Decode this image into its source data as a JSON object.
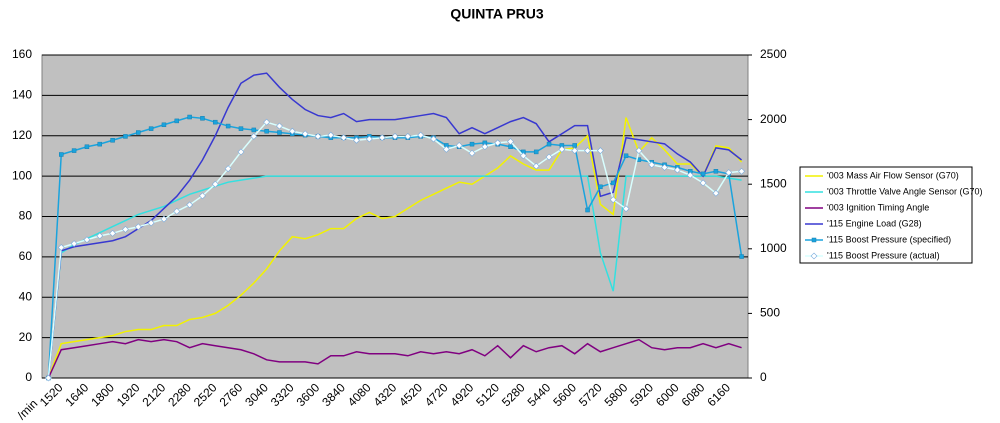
{
  "chart_data": {
    "type": "line",
    "title": "QUINTA PRU3",
    "x_label": "/min",
    "categories": [
      null,
      "1520",
      null,
      "1640",
      null,
      "1800",
      null,
      "1920",
      null,
      "2120",
      null,
      "2280",
      null,
      "2520",
      null,
      "2760",
      null,
      "3040",
      null,
      "3320",
      null,
      "3600",
      null,
      "3840",
      null,
      "4080",
      null,
      "4320",
      null,
      "4520",
      null,
      "4720",
      null,
      "4920",
      null,
      "5120",
      null,
      "5280",
      null,
      "5440",
      null,
      "5600",
      null,
      "5720",
      null,
      "5800",
      null,
      "5920",
      null,
      "6000",
      null,
      "6080",
      null,
      "6160",
      null
    ],
    "ylim": [
      0,
      160
    ],
    "yticks": [
      0,
      20,
      40,
      60,
      80,
      100,
      120,
      140,
      160
    ],
    "y2lim": [
      0,
      2500
    ],
    "y2ticks": [
      0,
      500,
      1000,
      1500,
      2000,
      2500
    ],
    "grid": true,
    "legend": "right",
    "series": [
      {
        "name": "'003 Mass Air Flow Sensor (G70)",
        "color": "#f2f200",
        "values": [
          0,
          17,
          18,
          19,
          20,
          21,
          23,
          24,
          24,
          26,
          26,
          29,
          30,
          32,
          36,
          41,
          47,
          54,
          63,
          70,
          69,
          71,
          74,
          74,
          79,
          82,
          79,
          80,
          84,
          88,
          91,
          94,
          97,
          96,
          100,
          104,
          110,
          106,
          103,
          103,
          113,
          114,
          120,
          86,
          81,
          129,
          112,
          119,
          113,
          106,
          106,
          100,
          115,
          114,
          107
        ]
      },
      {
        "name": "'003 Throttle Valve Angle Sensor (G70)",
        "color": "#33e0e0",
        "values": [
          0,
          62,
          66,
          69,
          72,
          75,
          78,
          81,
          83,
          85,
          88,
          91,
          93,
          95,
          97,
          98,
          99,
          100,
          100,
          100,
          100,
          100,
          100,
          100,
          100,
          100,
          100,
          100,
          100,
          100,
          100,
          100,
          100,
          100,
          100,
          100,
          100,
          100,
          100,
          100,
          100,
          100,
          100,
          62,
          43,
          100,
          100,
          100,
          100,
          100,
          100,
          100,
          100,
          99,
          98
        ]
      },
      {
        "name": "'003 Ignition Timing Angle",
        "color": "#800080",
        "values": [
          0,
          14,
          15,
          16,
          17,
          18,
          17,
          19,
          18,
          19,
          18,
          15,
          17,
          16,
          15,
          14,
          12,
          9,
          8,
          8,
          8,
          7,
          11,
          11,
          13,
          12,
          12,
          12,
          11,
          13,
          12,
          13,
          12,
          14,
          11,
          16,
          10,
          16,
          13,
          15,
          16,
          12,
          17,
          13,
          15,
          17,
          19,
          15,
          14,
          15,
          15,
          17,
          15,
          17,
          15
        ]
      },
      {
        "name": "'115 Engine Load (G28)",
        "color": "#3838d0",
        "values": [
          0,
          63,
          65,
          66,
          67,
          68,
          70,
          74,
          78,
          84,
          90,
          98,
          108,
          120,
          134,
          146,
          150,
          151,
          144,
          138,
          133,
          130,
          129,
          131,
          127,
          128,
          128,
          128,
          129,
          130,
          131,
          129,
          121,
          124,
          121,
          124,
          127,
          129,
          126,
          117,
          121,
          125,
          125,
          90,
          92,
          119,
          118,
          117,
          116,
          111,
          107,
          100,
          114,
          113,
          108
        ]
      },
      {
        "name": "'115 Boost Pressure (specified)",
        "color": "#1aa3dd",
        "axis": "y2",
        "marker": "square",
        "values": [
          0,
          1730,
          1760,
          1790,
          1810,
          1840,
          1870,
          1900,
          1930,
          1960,
          1990,
          2020,
          2010,
          1980,
          1950,
          1930,
          1920,
          1910,
          1900,
          1890,
          1880,
          1870,
          1860,
          1860,
          1860,
          1870,
          1860,
          1860,
          1860,
          1870,
          1860,
          1800,
          1790,
          1810,
          1820,
          1810,
          1790,
          1750,
          1750,
          1810,
          1800,
          1800,
          1300,
          1480,
          1510,
          1720,
          1690,
          1670,
          1650,
          1630,
          1600,
          1580,
          1600,
          1580,
          940
        ]
      },
      {
        "name": "'115 Boost Pressure (actual)",
        "color": "#d8ffff",
        "axis": "y2",
        "marker": "diamond",
        "values": [
          0,
          1010,
          1040,
          1070,
          1100,
          1120,
          1150,
          1170,
          1200,
          1230,
          1290,
          1340,
          1410,
          1500,
          1620,
          1750,
          1870,
          1980,
          1950,
          1910,
          1890,
          1870,
          1880,
          1860,
          1840,
          1850,
          1860,
          1870,
          1870,
          1880,
          1850,
          1770,
          1800,
          1740,
          1790,
          1820,
          1830,
          1720,
          1640,
          1710,
          1770,
          1760,
          1760,
          1760,
          1380,
          1310,
          1760,
          1650,
          1630,
          1610,
          1570,
          1510,
          1430,
          1590,
          1600
        ]
      }
    ]
  }
}
